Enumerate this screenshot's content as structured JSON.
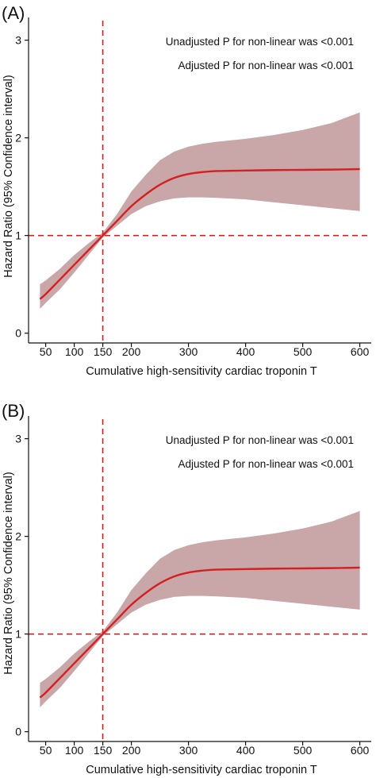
{
  "chart_data": [
    {
      "type": "line",
      "panel_label": "(A)",
      "xlabel": "Cumulative high-sensitivity cardiac troponin T",
      "ylabel": "Hazard Ratio (95% Confidence interval)",
      "xlim": [
        20,
        620
      ],
      "ylim": [
        -0.1,
        3.2
      ],
      "x_ticks": [
        50,
        100,
        150,
        200,
        300,
        400,
        500,
        600
      ],
      "highlight_x_tick": 150,
      "y_ticks": [
        0,
        1,
        2,
        3
      ],
      "reference_lines": {
        "vertical_x": 150,
        "horizontal_y": 1
      },
      "annotations": [
        "Unadjusted P for non-linear was <0.001",
        "Adjusted P for non-linear was <0.001"
      ],
      "colors": {
        "line": "#d42020",
        "band": "#c9a6a8",
        "reference": "#d42020"
      },
      "series": [
        {
          "x": [
            40,
            50,
            75,
            100,
            125,
            150,
            175,
            200,
            225,
            250,
            275,
            300,
            325,
            350,
            400,
            450,
            500,
            550,
            600
          ],
          "values": [
            0.35,
            0.4,
            0.55,
            0.7,
            0.85,
            1.0,
            1.15,
            1.3,
            1.42,
            1.52,
            1.59,
            1.63,
            1.65,
            1.66,
            1.665,
            1.67,
            1.672,
            1.675,
            1.68
          ],
          "lower": [
            0.25,
            0.31,
            0.45,
            0.62,
            0.8,
            0.98,
            1.1,
            1.22,
            1.3,
            1.35,
            1.38,
            1.39,
            1.39,
            1.385,
            1.37,
            1.34,
            1.31,
            1.28,
            1.25
          ],
          "upper": [
            0.5,
            0.54,
            0.66,
            0.8,
            0.92,
            1.03,
            1.22,
            1.45,
            1.62,
            1.77,
            1.86,
            1.91,
            1.94,
            1.96,
            1.99,
            2.03,
            2.08,
            2.15,
            2.26
          ]
        }
      ]
    },
    {
      "type": "line",
      "panel_label": "(B)",
      "xlabel": "Cumulative high-sensitivity cardiac troponin T",
      "ylabel": "Hazard Ratio (95% Confidence interval)",
      "xlim": [
        20,
        620
      ],
      "ylim": [
        -0.1,
        3.2
      ],
      "x_ticks": [
        50,
        100,
        150,
        200,
        300,
        400,
        500,
        600
      ],
      "highlight_x_tick": 150,
      "y_ticks": [
        0,
        1,
        2,
        3
      ],
      "reference_lines": {
        "vertical_x": 150,
        "horizontal_y": 1
      },
      "annotations": [
        "Unadjusted P for non-linear was <0.001",
        "Adjusted P for non-linear was <0.001"
      ],
      "colors": {
        "line": "#d42020",
        "band": "#c9a6a8",
        "reference": "#d42020"
      },
      "series": [
        {
          "x": [
            40,
            50,
            75,
            100,
            125,
            150,
            175,
            200,
            225,
            250,
            275,
            300,
            325,
            350,
            400,
            450,
            500,
            550,
            600
          ],
          "values": [
            0.35,
            0.4,
            0.55,
            0.7,
            0.85,
            1.0,
            1.15,
            1.3,
            1.42,
            1.52,
            1.59,
            1.63,
            1.65,
            1.66,
            1.665,
            1.67,
            1.672,
            1.675,
            1.68
          ],
          "lower": [
            0.25,
            0.31,
            0.45,
            0.62,
            0.8,
            0.98,
            1.1,
            1.22,
            1.3,
            1.35,
            1.38,
            1.39,
            1.39,
            1.385,
            1.37,
            1.34,
            1.31,
            1.28,
            1.25
          ],
          "upper": [
            0.5,
            0.54,
            0.66,
            0.8,
            0.92,
            1.03,
            1.22,
            1.45,
            1.62,
            1.77,
            1.86,
            1.91,
            1.94,
            1.96,
            1.99,
            2.03,
            2.08,
            2.15,
            2.26
          ]
        }
      ]
    }
  ]
}
